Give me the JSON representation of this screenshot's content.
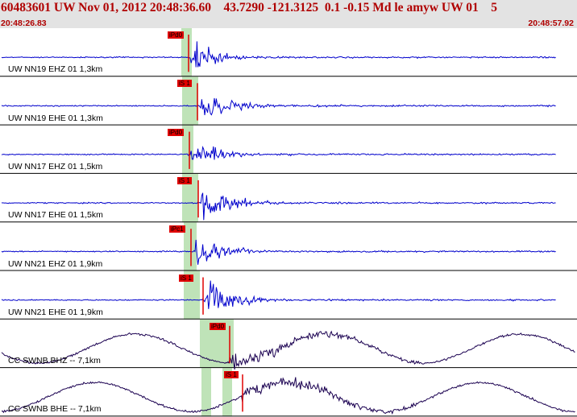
{
  "header": {
    "title": "60483601 UW Nov 01, 2012 20:48:36.60    43.7290 -121.3125  0.1 -0.15 Md le amyw UW 01    5",
    "time_start": "20:48:26.83",
    "time_end": "20:48:57.92"
  },
  "traces": [
    {
      "label": "UW NN19 EHZ 01 1,3km",
      "pick": "iPd0",
      "color": "#0000cc"
    },
    {
      "label": "UW NN19 EHE 01 1,3km",
      "pick": "iS 1",
      "color": "#0000cc"
    },
    {
      "label": "UW NN17 EHZ 01 1,5km",
      "pick": "iPd0",
      "color": "#0000cc"
    },
    {
      "label": "UW NN17 EHE 01 1,5km",
      "pick": "iS 1",
      "color": "#0000cc"
    },
    {
      "label": "UW NN21 EHZ 01 1,9km",
      "pick": "iPc1",
      "color": "#0000cc"
    },
    {
      "label": "UW NN21 EHE 01 1,9km",
      "pick": "iS 1",
      "color": "#0000cc"
    },
    {
      "label": "CC SWNB BHZ -- 7,1km",
      "pick": "iPd0",
      "color": "#1a0050"
    },
    {
      "label": "CC SWNB BHE -- 7,1km",
      "pick": "iS 1",
      "color": "#1a0050"
    }
  ]
}
